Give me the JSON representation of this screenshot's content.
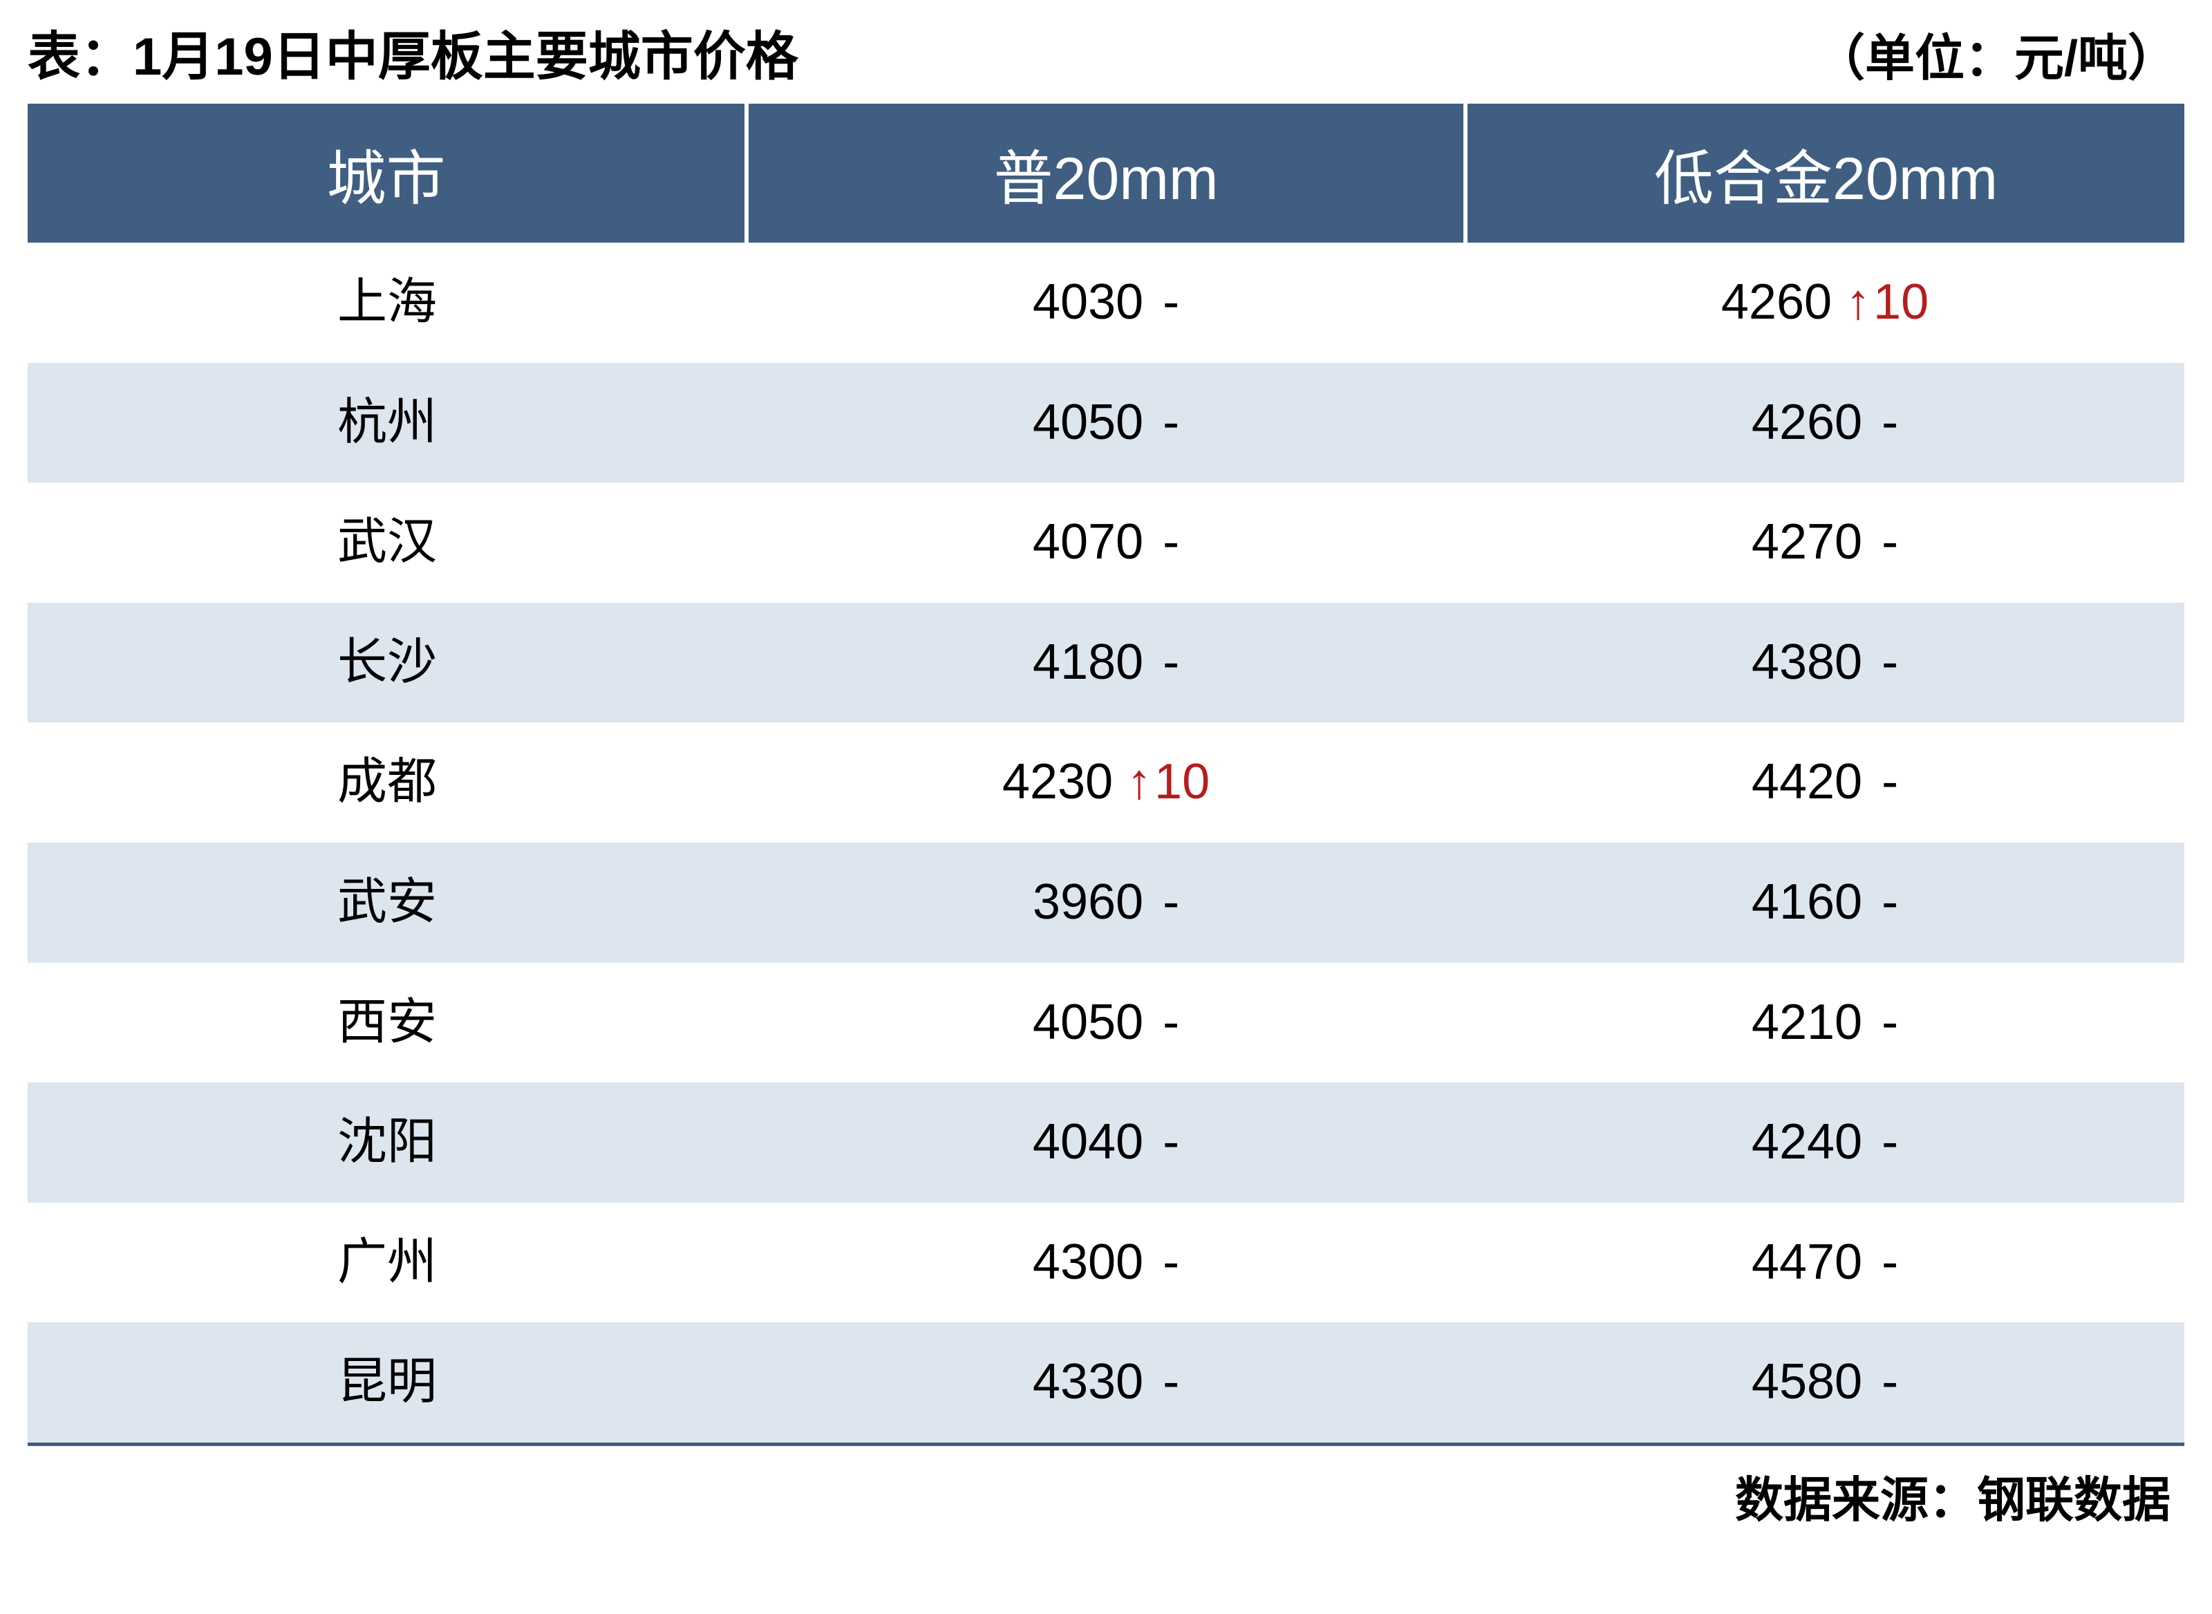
{
  "type": "table",
  "title_left": "表：1月19日中厚板主要城市价格",
  "title_right": "（单位：元/吨）",
  "source_label": "数据来源：钢联数据",
  "colors": {
    "header_bg": "#3f5e82",
    "header_text": "#ffffff",
    "row_odd_bg": "#ffffff",
    "row_even_bg": "#dde5ee",
    "text": "#000000",
    "delta_up": "#b71c1c",
    "border_bottom": "#3f5e82"
  },
  "typography": {
    "title_fontsize_pt": 57,
    "header_fontsize_pt": 65,
    "cell_fontsize_pt": 54,
    "source_fontsize_pt": 53,
    "title_weight": 700,
    "header_weight": 400,
    "cell_weight": 400
  },
  "columns": [
    "城市",
    "普20mm",
    "低合金20mm"
  ],
  "column_widths_pct": [
    33.33,
    33.33,
    33.34
  ],
  "rows": [
    {
      "city": "上海",
      "p20": {
        "price": 4030,
        "delta": 0
      },
      "alloy20": {
        "price": 4260,
        "delta": 10
      }
    },
    {
      "city": "杭州",
      "p20": {
        "price": 4050,
        "delta": 0
      },
      "alloy20": {
        "price": 4260,
        "delta": 0
      }
    },
    {
      "city": "武汉",
      "p20": {
        "price": 4070,
        "delta": 0
      },
      "alloy20": {
        "price": 4270,
        "delta": 0
      }
    },
    {
      "city": "长沙",
      "p20": {
        "price": 4180,
        "delta": 0
      },
      "alloy20": {
        "price": 4380,
        "delta": 0
      }
    },
    {
      "city": "成都",
      "p20": {
        "price": 4230,
        "delta": 10
      },
      "alloy20": {
        "price": 4420,
        "delta": 0
      }
    },
    {
      "city": "武安",
      "p20": {
        "price": 3960,
        "delta": 0
      },
      "alloy20": {
        "price": 4160,
        "delta": 0
      }
    },
    {
      "city": "西安",
      "p20": {
        "price": 4050,
        "delta": 0
      },
      "alloy20": {
        "price": 4210,
        "delta": 0
      }
    },
    {
      "city": "沈阳",
      "p20": {
        "price": 4040,
        "delta": 0
      },
      "alloy20": {
        "price": 4240,
        "delta": 0
      }
    },
    {
      "city": "广州",
      "p20": {
        "price": 4300,
        "delta": 0
      },
      "alloy20": {
        "price": 4470,
        "delta": 0
      }
    },
    {
      "city": "昆明",
      "p20": {
        "price": 4330,
        "delta": 0
      },
      "alloy20": {
        "price": 4580,
        "delta": 0
      }
    }
  ],
  "symbols": {
    "flat": "-",
    "up_arrow": "↑"
  }
}
